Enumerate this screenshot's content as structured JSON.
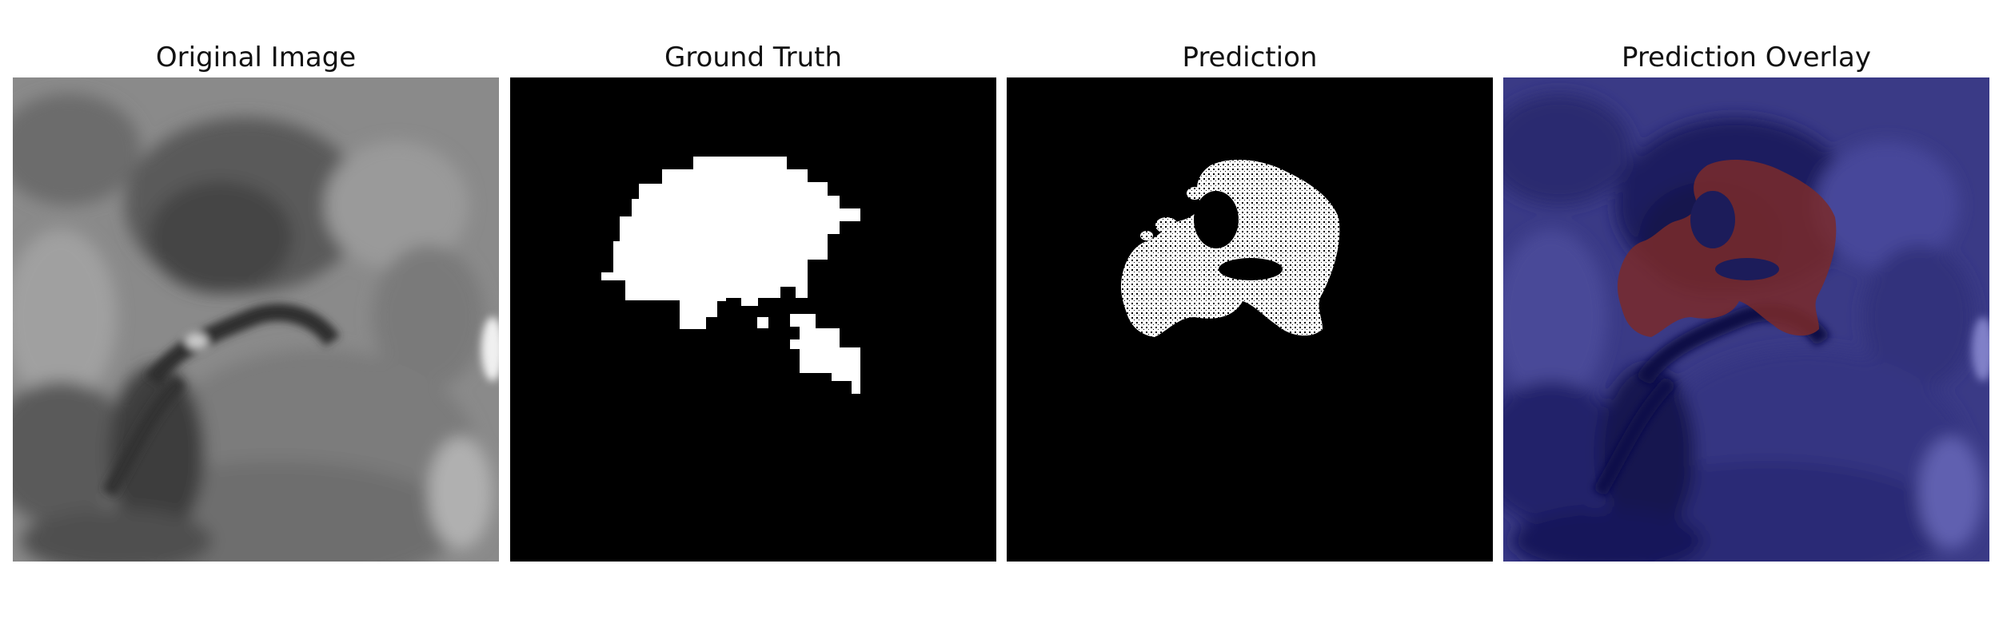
{
  "figure": {
    "panels": [
      {
        "title": "Original Image",
        "kind": "grayscale-mri"
      },
      {
        "title": "Ground Truth",
        "kind": "binary-mask"
      },
      {
        "title": "Prediction",
        "kind": "binary-mask"
      },
      {
        "title": "Prediction Overlay",
        "kind": "overlay"
      }
    ]
  },
  "colors": {
    "mask_foreground": "#ffffff",
    "mask_background": "#000000",
    "overlay_tint": "#2a2a8a",
    "overlay_region": "#8b2a1a"
  }
}
